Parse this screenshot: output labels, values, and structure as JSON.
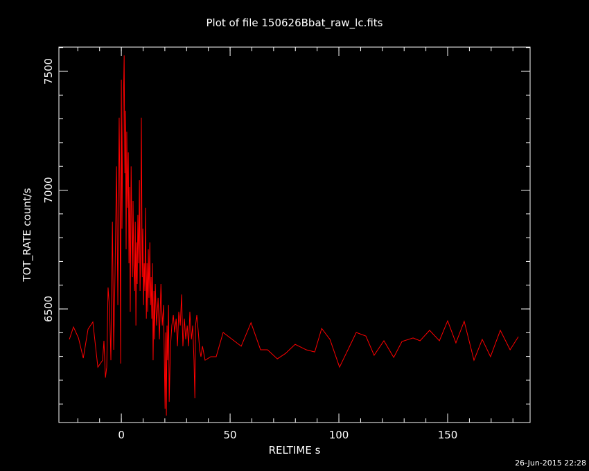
{
  "chart_data": {
    "type": "line",
    "title": "Plot of file 150626Bbat_raw_lc.fits",
    "x_label": "RELTIME  s",
    "y_label": "TOT_RATE  count/s",
    "timestamp": "26-Jun-2015 22:28",
    "xlim": [
      -28.7,
      187.9
    ],
    "ylim": [
      6022,
      7602
    ],
    "xticks": [
      0,
      50,
      100,
      150
    ],
    "yticks": [
      6500,
      7000,
      7500
    ],
    "x": [
      -23.9,
      -22.0,
      -19.7,
      -17.5,
      -15.3,
      -13.1,
      -10.8,
      -8.6,
      -8.0,
      -7.3,
      -6.7,
      -6.1,
      -5.4,
      -4.8,
      -4.1,
      -3.5,
      -2.9,
      -2.2,
      -1.6,
      -1.0,
      -0.6,
      -0.3,
      0,
      0.3,
      0.6,
      1.0,
      1.3,
      1.6,
      1.9,
      2.2,
      2.5,
      2.9,
      3.2,
      3.5,
      3.8,
      4.1,
      4.5,
      4.8,
      5.1,
      5.4,
      5.7,
      6.1,
      6.4,
      6.7,
      7.0,
      7.3,
      7.6,
      8.0,
      8.3,
      8.6,
      8.9,
      9.2,
      9.6,
      9.9,
      10.2,
      10.5,
      10.8,
      11.1,
      11.5,
      11.8,
      12.1,
      12.4,
      12.7,
      13.1,
      13.4,
      13.7,
      14.0,
      14.3,
      14.6,
      15.0,
      15.3,
      15.6,
      16.2,
      16.9,
      17.5,
      18.2,
      18.8,
      19.4,
      20.1,
      20.4,
      20.7,
      21.0,
      21.3,
      21.7,
      22.0,
      22.6,
      23.2,
      23.9,
      24.5,
      25.2,
      25.8,
      26.4,
      27.1,
      27.7,
      28.3,
      29.0,
      29.6,
      30.3,
      30.9,
      31.5,
      32.2,
      32.8,
      33.4,
      33.8,
      34.1,
      34.7,
      35.4,
      36.0,
      36.6,
      37.3,
      38.5,
      41.1,
      43.6,
      46.8,
      55.1,
      59.6,
      64.0,
      67.2,
      71.7,
      75.5,
      79.9,
      85.0,
      88.9,
      92.1,
      95.9,
      100.3,
      108.0,
      112.4,
      116.2,
      120.7,
      125.2,
      129.0,
      134.1,
      137.3,
      141.7,
      146.2,
      150.0,
      153.8,
      157.6,
      162.1,
      165.9,
      169.7,
      174.2,
      178.7,
      182.5
    ],
    "series": [
      {
        "color": "#ff0000",
        "values": [
          6372,
          6424,
          6378,
          6293,
          6415,
          6445,
          6255,
          6284,
          6366,
          6211,
          6255,
          6590,
          6503,
          6284,
          6867,
          6328,
          6649,
          7100,
          6517,
          7305,
          6926,
          6270,
          7465,
          6838,
          7217,
          7392,
          7567,
          7071,
          7334,
          6751,
          7246,
          6926,
          7159,
          6692,
          7013,
          6488,
          7100,
          6867,
          6634,
          6955,
          6692,
          6576,
          6867,
          6430,
          6780,
          6605,
          6896,
          6692,
          7042,
          6576,
          6751,
          7305,
          6634,
          6838,
          6517,
          6692,
          6576,
          6926,
          6459,
          6692,
          6488,
          6751,
          6547,
          6780,
          6517,
          6634,
          6459,
          6692,
          6284,
          6576,
          6372,
          6605,
          6430,
          6547,
          6372,
          6605,
          6430,
          6517,
          6080,
          6401,
          6051,
          6430,
          6284,
          6517,
          6109,
          6343,
          6430,
          6474,
          6401,
          6459,
          6343,
          6488,
          6430,
          6561,
          6343,
          6459,
          6372,
          6430,
          6343,
          6488,
          6372,
          6430,
          6284,
          6124,
          6430,
          6474,
          6401,
          6328,
          6299,
          6343,
          6284,
          6299,
          6299,
          6401,
          6343,
          6442,
          6328,
          6328,
          6290,
          6313,
          6351,
          6328,
          6319,
          6418,
          6372,
          6255,
          6401,
          6386,
          6305,
          6366,
          6296,
          6363,
          6378,
          6366,
          6410,
          6366,
          6450,
          6357,
          6448,
          6284,
          6372,
          6299,
          6410,
          6328,
          6383
        ]
      }
    ]
  }
}
